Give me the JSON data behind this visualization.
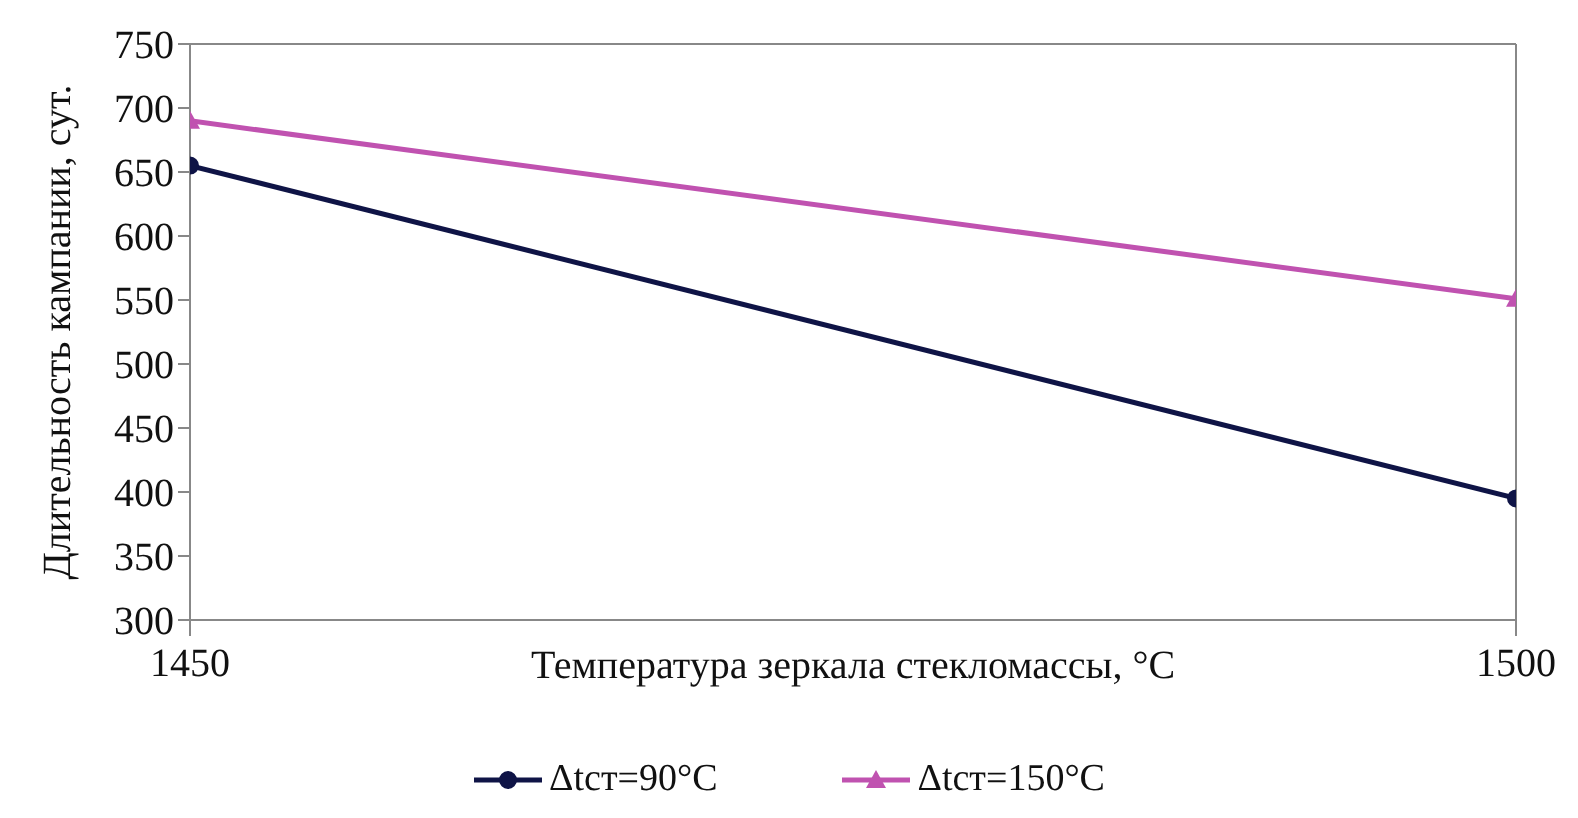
{
  "chart_data": {
    "type": "line",
    "xlabel": "Температура зеркала стекломассы, °С",
    "ylabel": "Длительность кампании, сут.",
    "x": [
      1450,
      1500
    ],
    "series": [
      {
        "name": "Δtст=90°С",
        "color": "#0f1446",
        "values": [
          655,
          395
        ],
        "marker": "circle"
      },
      {
        "name": "Δtст=150°С",
        "color": "#c052b0",
        "values": [
          690,
          551
        ],
        "marker": "triangle"
      }
    ],
    "xlim": [
      1450,
      1500
    ],
    "xticks": [
      1450,
      1500
    ],
    "ylim": [
      300,
      750
    ],
    "yticks": [
      300,
      350,
      400,
      450,
      500,
      550,
      600,
      650,
      700,
      750
    ],
    "grid": false,
    "legend": "bottom",
    "line_style": "solid"
  }
}
